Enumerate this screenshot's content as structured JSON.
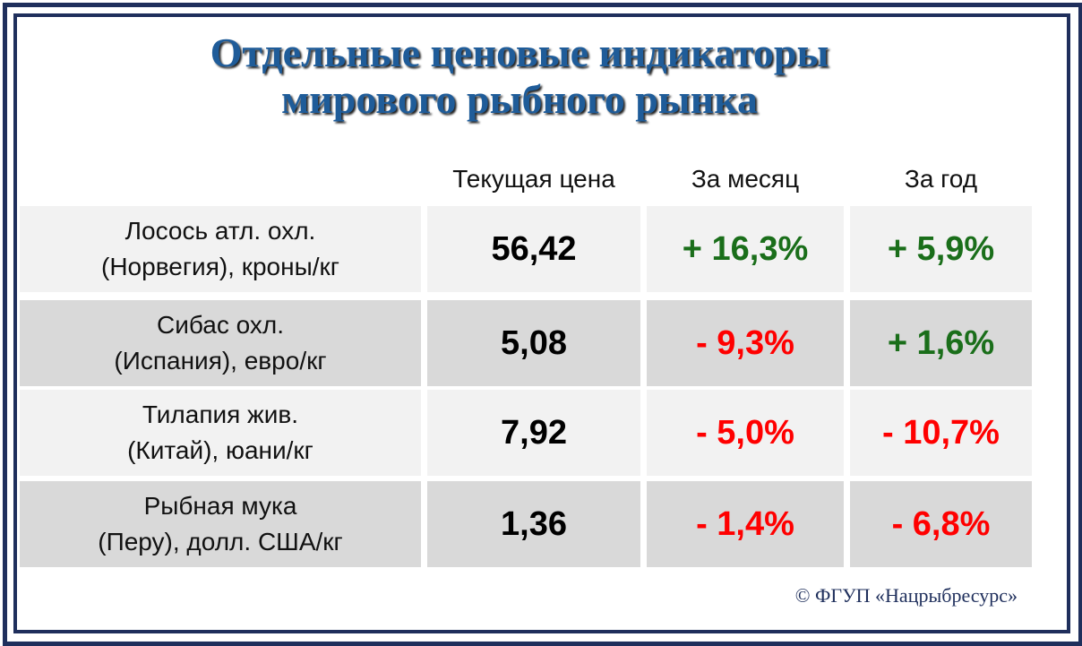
{
  "header": {
    "title": [
      "Отдельные ценовые индикаторы",
      "мирового рыбного рынка"
    ]
  },
  "table": {
    "columns": [
      "Текущая цена",
      "За месяц",
      "За год"
    ],
    "rows": [
      {
        "label": [
          "Лосось атл. охл.",
          "(Норвегия), кроны/кг"
        ],
        "price": "56,42",
        "month": "+ 16,3%",
        "year": "+ 5,9%"
      },
      {
        "label": [
          "Сибас охл.",
          "(Испания), евро/кг"
        ],
        "price": "5,08",
        "month": "- 9,3%",
        "year": "+ 1,6%"
      },
      {
        "label": [
          "Тилапия жив.",
          "(Китай), юани/кг"
        ],
        "price": "7,92",
        "month": "- 5,0%",
        "year": "- 10,7%"
      },
      {
        "label": [
          "Рыбная мука",
          "(Перу), долл. США/кг"
        ],
        "price": "1,36",
        "month": "- 1,4%",
        "year": "- 6,8%"
      }
    ]
  },
  "footer": "© ФГУП «Нацрыбресурс»"
}
